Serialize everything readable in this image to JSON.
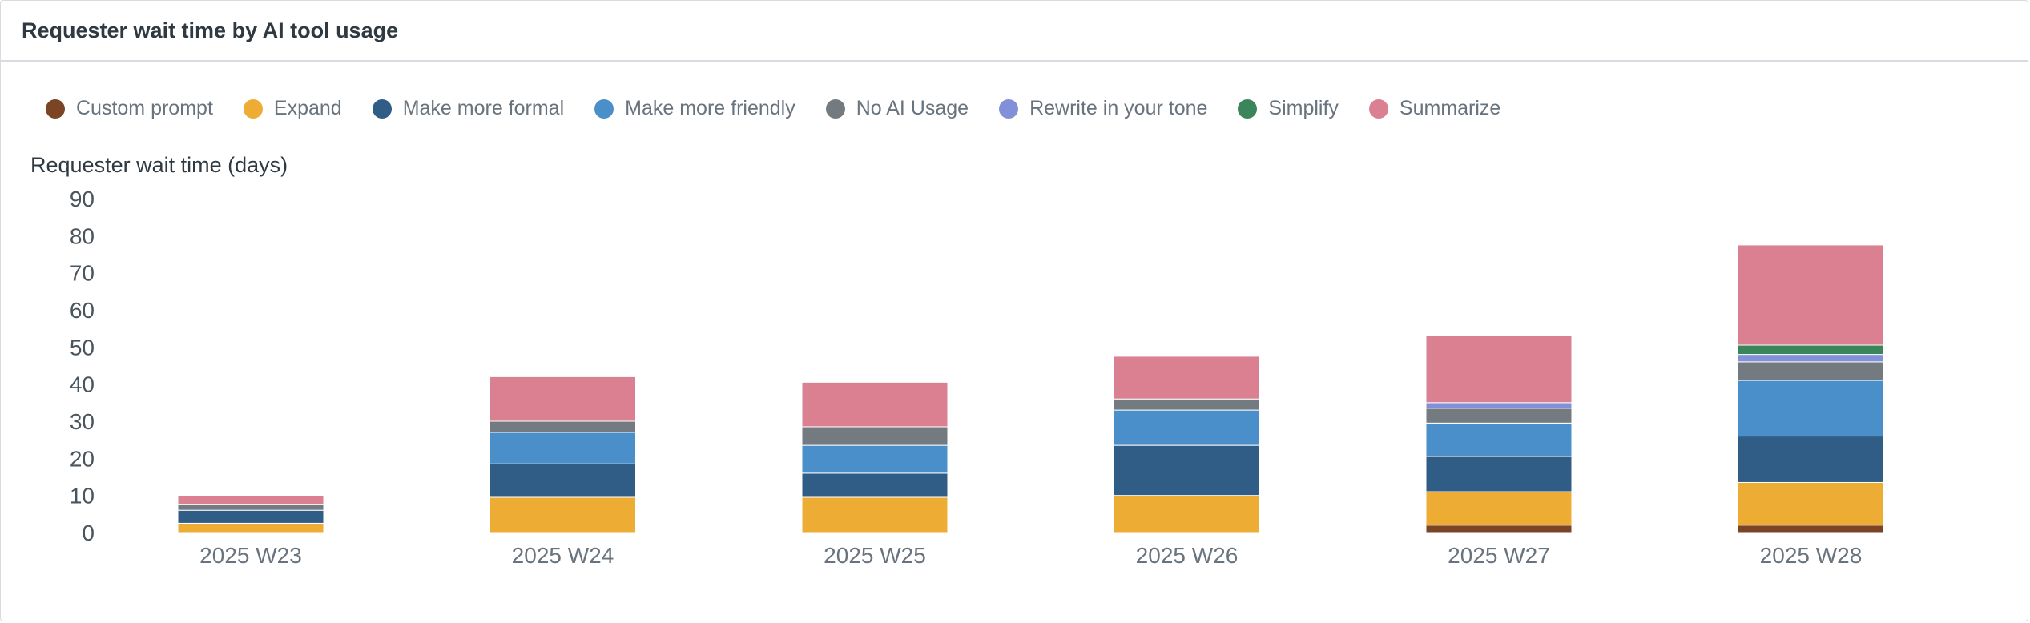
{
  "card": {
    "title": "Requester wait time by AI tool usage"
  },
  "chart_data": {
    "type": "bar",
    "stacked": true,
    "title": "Requester wait time by AI tool usage",
    "xlabel": "",
    "ylabel": "Requester wait time (days)",
    "ylim": [
      0,
      90
    ],
    "yticks": [
      0,
      10,
      20,
      30,
      40,
      50,
      60,
      70,
      80,
      90
    ],
    "grid": false,
    "legend_position": "top-left",
    "categories": [
      "2025 W23",
      "2025 W24",
      "2025 W25",
      "2025 W26",
      "2025 W27",
      "2025 W28"
    ],
    "series": [
      {
        "name": "Custom prompt",
        "color": "#7a4425",
        "values": [
          0,
          0,
          0,
          0,
          2,
          2
        ]
      },
      {
        "name": "Expand",
        "color": "#edad34",
        "values": [
          2.5,
          9.5,
          9.5,
          10,
          9,
          11.5
        ]
      },
      {
        "name": "Make more formal",
        "color": "#2f5d85",
        "values": [
          3.5,
          9,
          6.5,
          13.5,
          9.5,
          12.5
        ]
      },
      {
        "name": "Make more friendly",
        "color": "#4a8fc9",
        "values": [
          0,
          8.5,
          7.5,
          9.5,
          9,
          15
        ]
      },
      {
        "name": "No AI Usage",
        "color": "#737b80",
        "values": [
          1.5,
          3,
          5,
          3,
          4,
          5
        ]
      },
      {
        "name": "Rewrite in your tone",
        "color": "#8190d8",
        "values": [
          0,
          0,
          0,
          0,
          1.5,
          2
        ]
      },
      {
        "name": "Simplify",
        "color": "#3a855a",
        "values": [
          0,
          0,
          0,
          0,
          0,
          2.5
        ]
      },
      {
        "name": "Summarize",
        "color": "#db8090",
        "values": [
          2.5,
          12,
          12,
          11.5,
          18,
          27
        ]
      }
    ]
  }
}
